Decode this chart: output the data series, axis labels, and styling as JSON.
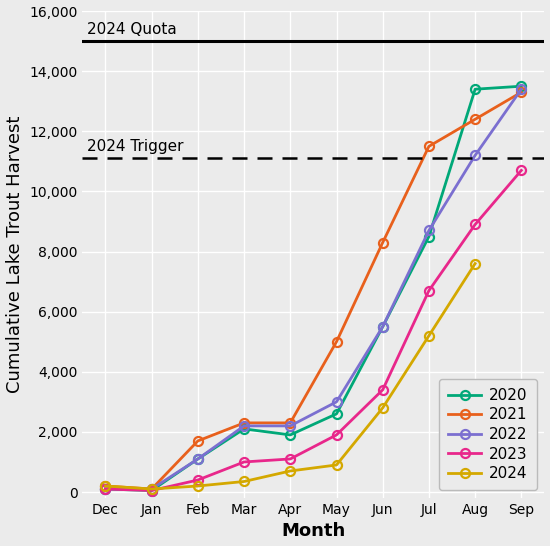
{
  "months": [
    "Dec",
    "Jan",
    "Feb",
    "Mar",
    "Apr",
    "May",
    "Jun",
    "Jul",
    "Aug",
    "Sep"
  ],
  "series": {
    "2020": [
      100,
      50,
      1100,
      2100,
      1900,
      2600,
      5500,
      8500,
      13400,
      13500
    ],
    "2021": [
      200,
      100,
      1700,
      2300,
      2300,
      5000,
      8300,
      11500,
      12400,
      13300
    ],
    "2022": [
      100,
      100,
      1100,
      2200,
      2200,
      3000,
      5500,
      8700,
      11200,
      13400
    ],
    "2023": [
      100,
      50,
      400,
      1000,
      1100,
      1900,
      3400,
      6700,
      8900,
      10700
    ],
    "2024": [
      200,
      100,
      200,
      350,
      700,
      900,
      2800,
      5200,
      7600,
      null
    ]
  },
  "colors": {
    "2020": "#00A878",
    "2021": "#E8601C",
    "2022": "#7B6FD0",
    "2023": "#E8278B",
    "2024": "#D4A800"
  },
  "quota_value": 15000,
  "quota_label": "2024 Quota",
  "trigger_value": 11100,
  "trigger_label": "2024 Trigger",
  "xlabel": "Month",
  "ylabel": "Cumulative Lake Trout Harvest",
  "ylim": [
    -200,
    16000
  ],
  "yticks": [
    0,
    2000,
    4000,
    6000,
    8000,
    10000,
    12000,
    14000,
    16000
  ],
  "background_color": "#EBEBEB",
  "grid_color": "#FFFFFF",
  "tick_fontsize": 10,
  "axis_label_fontsize": 13,
  "legend_fontsize": 11,
  "annotation_fontsize": 11
}
